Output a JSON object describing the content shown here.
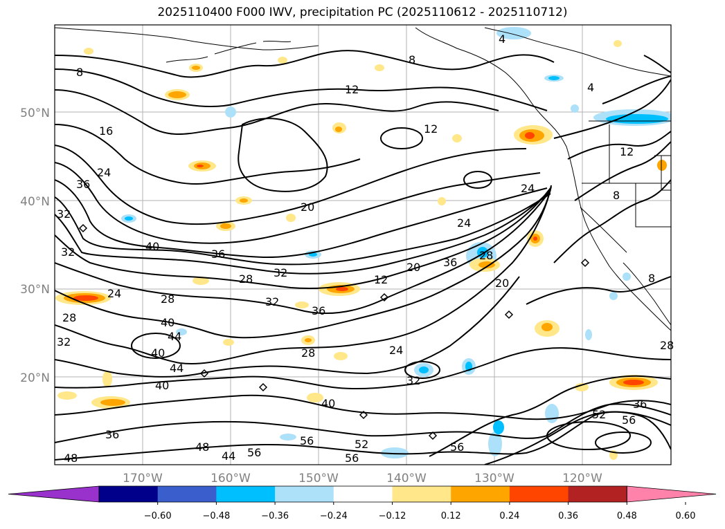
{
  "title": "2025110400 F000 IWV, precipitation PC (2025110612 - 2025110712)",
  "lat_labels": [
    "50°N",
    "40°N",
    "30°N",
    "20°N"
  ],
  "lon_labels": [
    "170°W",
    "160°W",
    "150°W",
    "140°W",
    "130°W",
    "120°W"
  ],
  "colorbar": {
    "ticks": [
      "−0.60",
      "−0.48",
      "−0.36",
      "−0.24",
      "−0.12",
      "0.12",
      "0.24",
      "0.36",
      "0.48",
      "0.60"
    ],
    "colors": [
      "#9932CC",
      "#00008B",
      "#3A5FCD",
      "#00BFFF",
      "#ADE1FA",
      "#FFFFFF",
      "#FFE78A",
      "#FFA500",
      "#FF4500",
      "#B22222",
      "#FF82AB"
    ]
  },
  "contour_labels": [
    "8",
    "12",
    "16",
    "24",
    "36",
    "32",
    "40",
    "36",
    "28",
    "32",
    "28",
    "32",
    "36",
    "20",
    "24",
    "20",
    "28",
    "36",
    "20",
    "24",
    "8",
    "4",
    "4",
    "12",
    "12",
    "28",
    "24",
    "40",
    "44",
    "40",
    "44",
    "28",
    "24",
    "32",
    "40",
    "40",
    "36",
    "32",
    "48",
    "44",
    "56",
    "56",
    "52",
    "56",
    "56",
    "36",
    "56",
    "52",
    "32",
    "12",
    "8",
    "8",
    "28",
    "48"
  ]
}
